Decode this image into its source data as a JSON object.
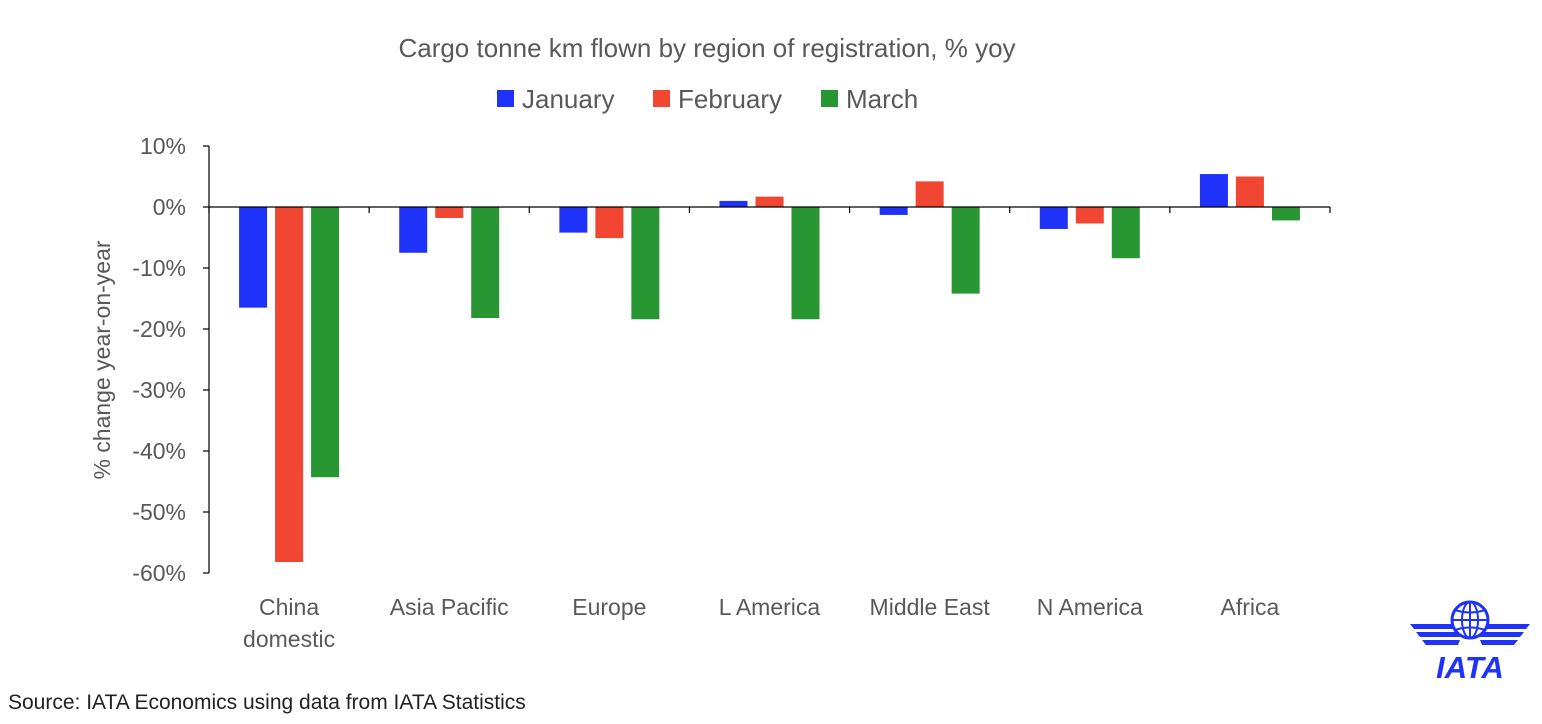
{
  "source_text": "Source: IATA Economics using data from IATA Statistics",
  "logo": {
    "text": "IATA",
    "color": "#1E32FA"
  },
  "chart_data": {
    "type": "bar",
    "title": "Cargo tonne km flown by region of registration, %  yoy",
    "xlabel": "",
    "ylabel": "% change year-on-year",
    "ylim": [
      -60,
      10
    ],
    "yticks": [
      10,
      0,
      -10,
      -20,
      -30,
      -40,
      -50,
      -60
    ],
    "ytick_labels": [
      "10%",
      "0%",
      "-10%",
      "-20%",
      "-30%",
      "-40%",
      "-50%",
      "-60%"
    ],
    "categories": [
      [
        "China",
        "domestic"
      ],
      [
        "Asia Pacific"
      ],
      [
        "Europe"
      ],
      [
        "L America"
      ],
      [
        "Middle East"
      ],
      [
        "N America"
      ],
      [
        "Africa"
      ]
    ],
    "legend_position": "top",
    "grid": false,
    "series": [
      {
        "name": "January",
        "color": "#1E32FA",
        "values": [
          -16.5,
          -7.5,
          -4.2,
          1.0,
          -1.3,
          -3.6,
          5.4
        ]
      },
      {
        "name": "February",
        "color": "#F04632",
        "values": [
          -58.2,
          -1.8,
          -5.1,
          1.7,
          4.2,
          -2.7,
          5.0
        ]
      },
      {
        "name": "March",
        "color": "#289632",
        "values": [
          -44.3,
          -18.2,
          -18.4,
          -18.4,
          -14.2,
          -8.4,
          -2.2
        ]
      }
    ]
  }
}
